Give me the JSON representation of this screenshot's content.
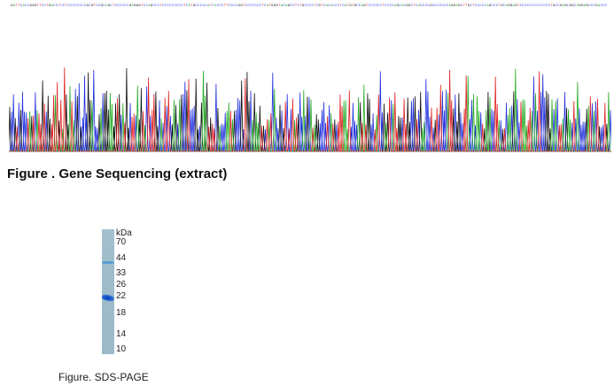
{
  "sequence": {
    "bases": "GATTCACCGGGTTCCTGACCTCCTCCCCCCCCGCGTCCGCAGCTCCCCCCGAGGGTCCAGCCCTCCCCCCCCCTCATGCCCCCATCACCCTTCCCCGGTCCCCCCCTCATGGGTACAGCCTCTGCCCCTCGTCACACCCTCATGTGCCAGTCCCCCCTCCCCAGCACGGCTCACCCCGCCCCCCCAGGAGCTTGCTCCCCCAGCCCTGCAGGAGTCCCCCCCCCCCCCTGCCGAGCGGCAGGAGCCCGACCC"
  },
  "figure1": {
    "caption": "Figure . Gene Sequencing (extract)"
  },
  "figure2": {
    "units": "kDa",
    "markers": [
      "70",
      "44",
      "33",
      "26",
      "22",
      "18",
      "14",
      "10"
    ],
    "caption": "Figure. SDS-PAGE"
  },
  "colors": {
    "A": "#22aa22",
    "C": "#2030dd",
    "G": "#111111",
    "T": "#dd2020"
  }
}
